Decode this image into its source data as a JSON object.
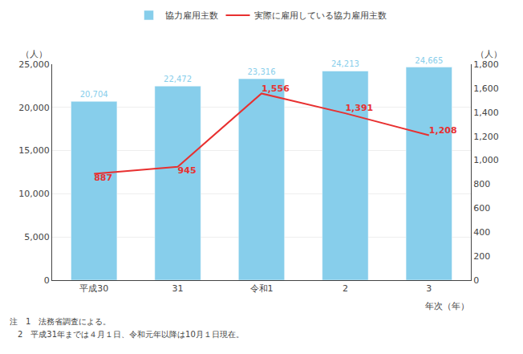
{
  "chart_data": {
    "type": "bar",
    "categories": [
      "平成30",
      "31",
      "令和1",
      "2",
      "3"
    ],
    "series": [
      {
        "name": "協力雇用主数",
        "type": "bar",
        "color": "#87CEEB",
        "values": [
          20704,
          22472,
          23316,
          24213,
          24665
        ],
        "value_labels": [
          "20,704",
          "22,472",
          "23,316",
          "24,213",
          "24,665"
        ]
      },
      {
        "name": "実際に雇用している協力雇用主数",
        "type": "line",
        "axis": "y2",
        "color": "#E83030",
        "values": [
          887,
          945,
          1556,
          1391,
          1208
        ],
        "value_labels": [
          "887",
          "945",
          "1,556",
          "1,391",
          "1,208"
        ]
      }
    ],
    "data_labels": true,
    "ylabel": "（人）",
    "y2label": "（人）",
    "xlabel": "年次（年）",
    "annotations": [
      "注　1　法務省調査による。",
      "　2　平成31年までは４月１日、令和元年以降は10月１日現在。"
    ],
    "ylim": [
      0,
      25000
    ],
    "yticks": [
      0,
      {
        "value": 5000,
        "label": "5,000"
      },
      {
        "value": 10000,
        "label": "10,000"
      },
      {
        "value": 15000,
        "label": "15,000"
      },
      {
        "value": 20000,
        "label": "20,000"
      },
      {
        "value": 25000,
        "label": "25,000"
      }
    ],
    "y2lim": [
      0,
      1800
    ],
    "y2ticks": [
      0,
      200,
      400,
      600,
      800,
      {
        "value": 1000,
        "label": "1,000"
      },
      {
        "value": 1200,
        "label": "1,200"
      },
      {
        "value": 1400,
        "label": "1,400"
      },
      {
        "value": 1600,
        "label": "1,600"
      },
      {
        "value": 1800,
        "label": "1,800"
      }
    ],
    "grid": true,
    "legend": "top"
  }
}
